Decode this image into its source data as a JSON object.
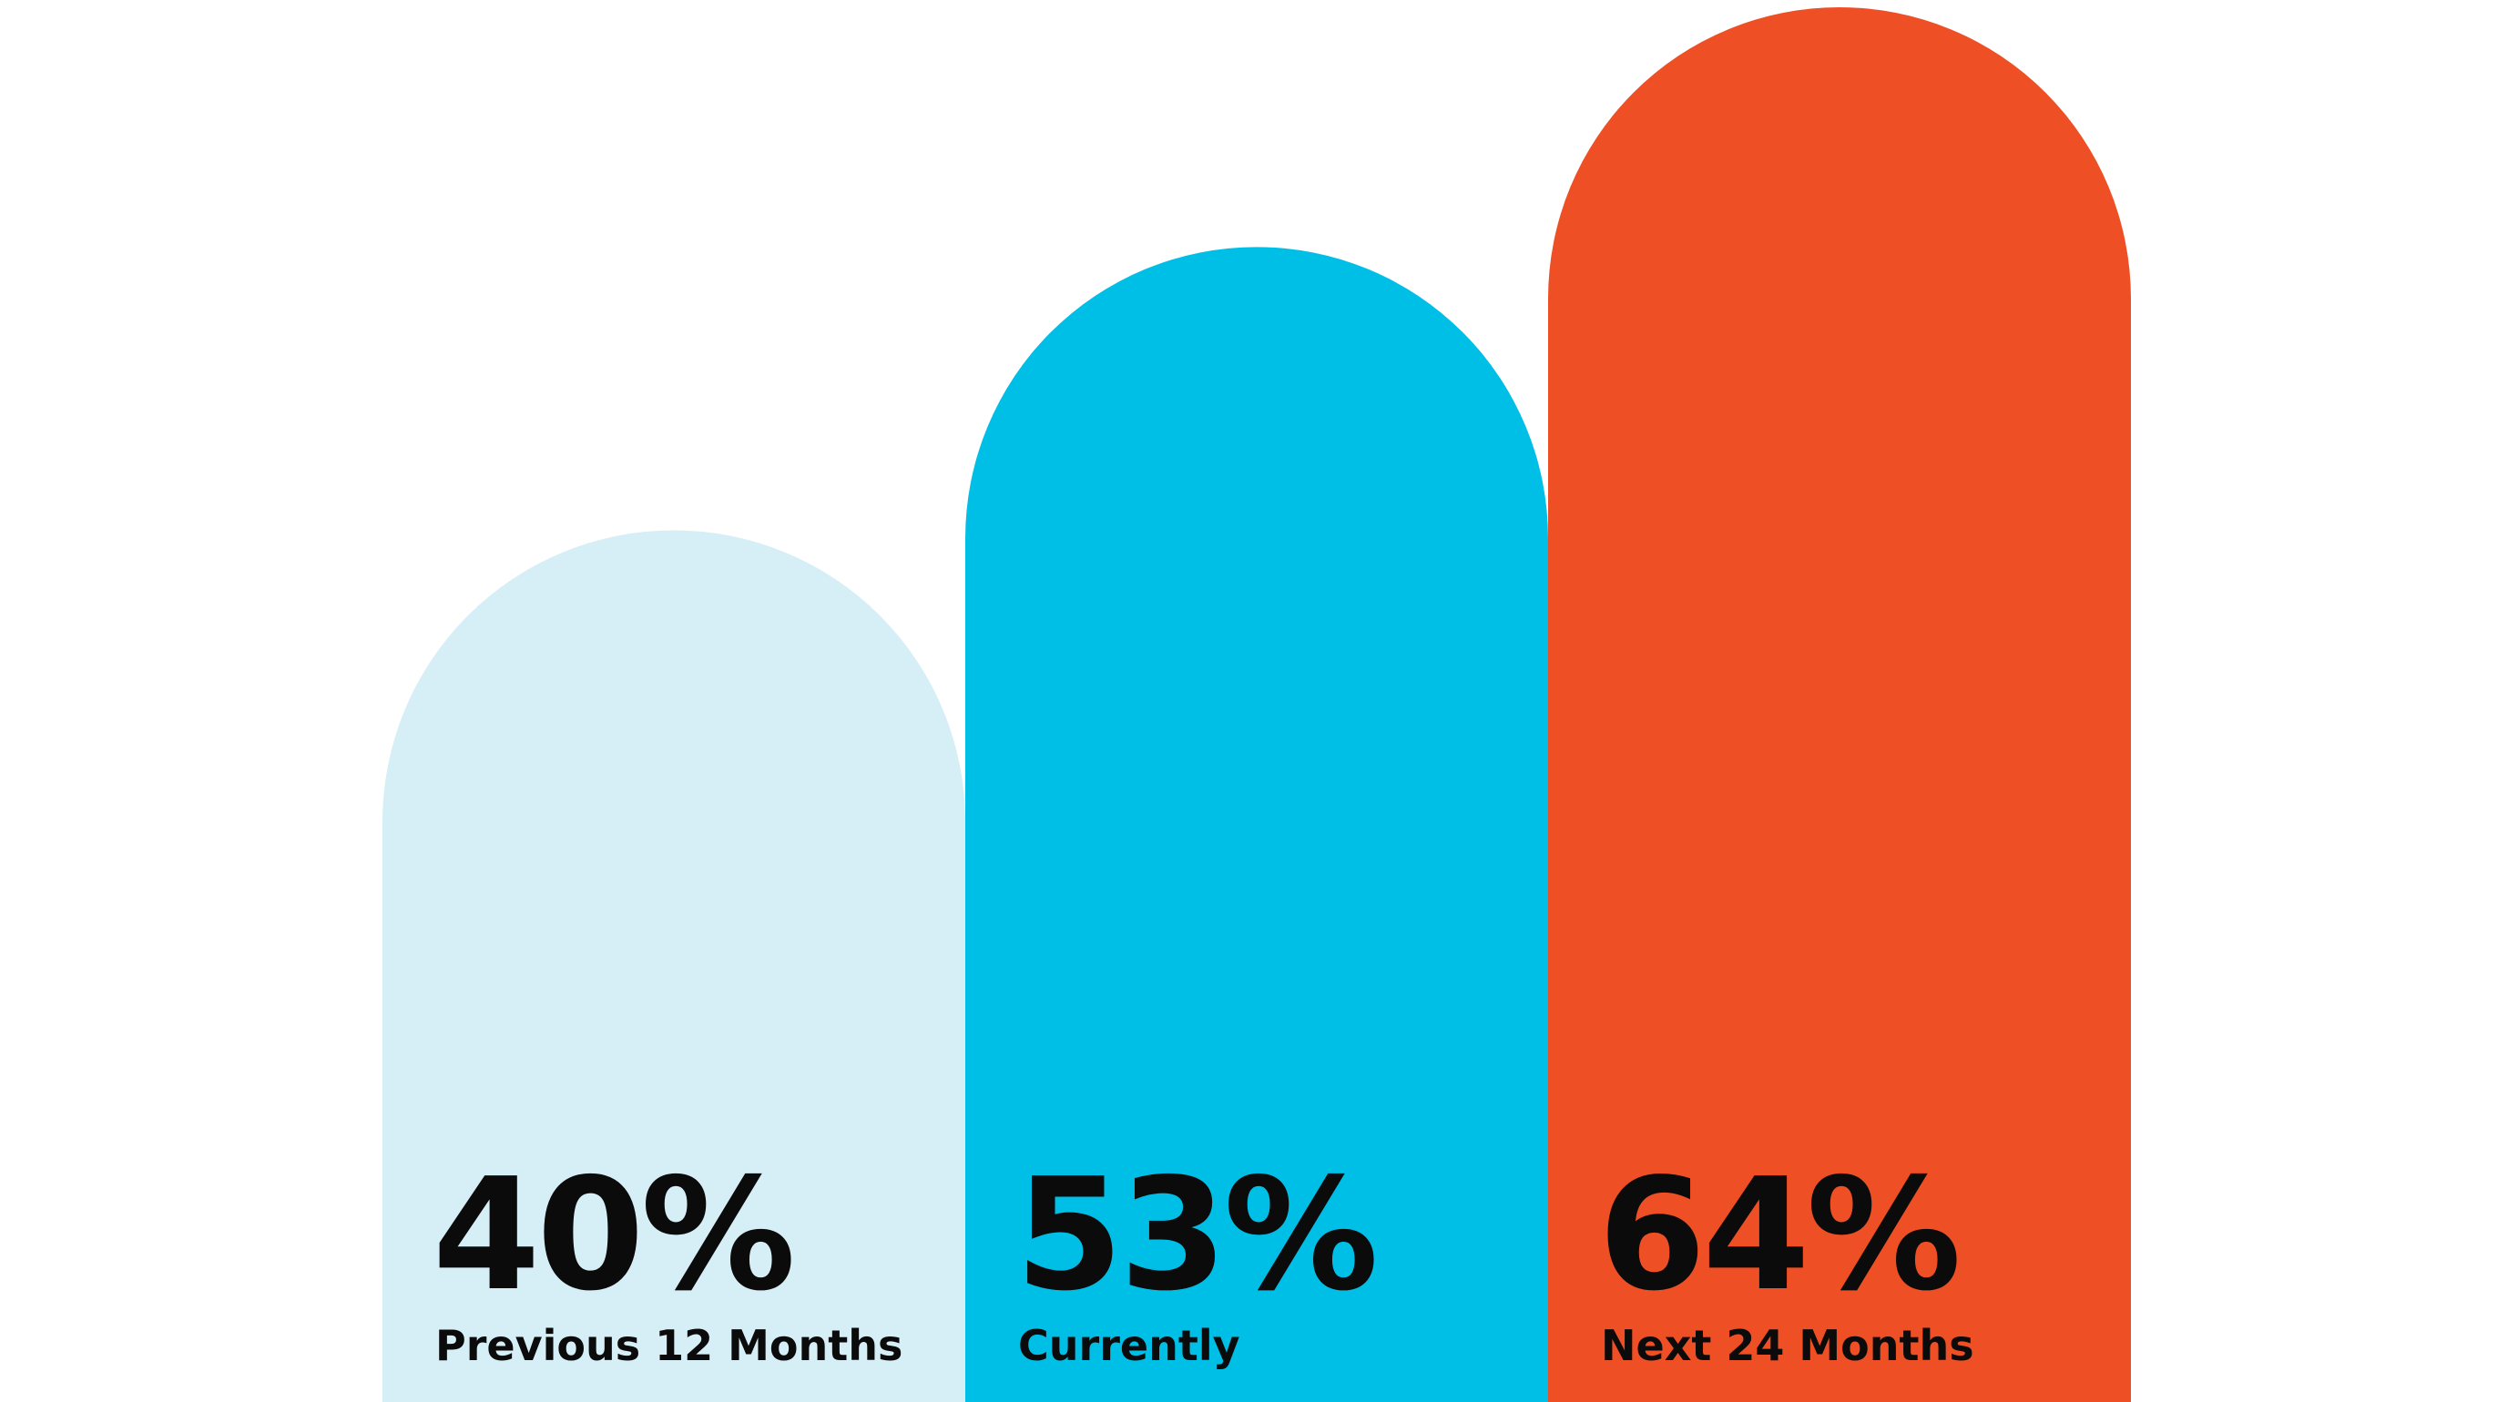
{
  "chart_data": {
    "type": "bar",
    "categories": [
      "Previous 12 Months",
      "Currently",
      "Next 24 Months"
    ],
    "values": [
      40,
      53,
      64
    ],
    "value_labels": [
      "40%",
      "53%",
      "64%"
    ],
    "colors": [
      "#d6eff6",
      "#00bfe7",
      "#ee4f25"
    ],
    "title": "",
    "xlabel": "",
    "ylabel": "",
    "ylim": [
      0,
      64
    ],
    "grid": false,
    "legend": "none",
    "bar_shape": "rounded-top"
  }
}
